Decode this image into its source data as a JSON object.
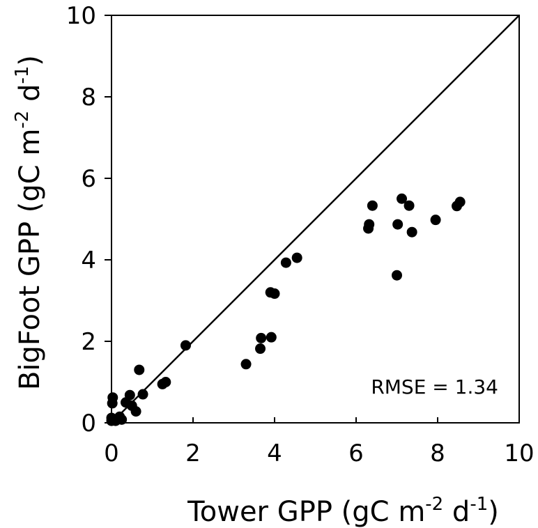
{
  "chart_data": {
    "type": "scatter",
    "xlabel": {
      "base": "Tower GPP (gC m",
      "sup1": "-2",
      "mid": " d",
      "sup2": "-1",
      "end": ")"
    },
    "ylabel": {
      "base": "BigFoot GPP (gC m",
      "sup1": "-2",
      "mid": " d",
      "sup2": "-1",
      "end": ")"
    },
    "xlim": [
      0,
      10
    ],
    "ylim": [
      0,
      10
    ],
    "xticks": [
      "0",
      "2",
      "4",
      "6",
      "8",
      "10"
    ],
    "yticks": [
      "0",
      "2",
      "4",
      "6",
      "8",
      "10"
    ],
    "grid": false,
    "reference_line": {
      "type": "1:1",
      "from": [
        0,
        0
      ],
      "to": [
        10,
        10
      ]
    },
    "annotation": "RMSE = 1.34",
    "points": [
      {
        "x": 0.0,
        "y": 0.05
      },
      {
        "x": 0.0,
        "y": 0.12
      },
      {
        "x": 0.05,
        "y": 0.08
      },
      {
        "x": 0.1,
        "y": 0.05
      },
      {
        "x": 0.25,
        "y": 0.08
      },
      {
        "x": 0.2,
        "y": 0.15
      },
      {
        "x": 0.02,
        "y": 0.48
      },
      {
        "x": 0.03,
        "y": 0.62
      },
      {
        "x": 0.35,
        "y": 0.5
      },
      {
        "x": 0.45,
        "y": 0.68
      },
      {
        "x": 0.5,
        "y": 0.42
      },
      {
        "x": 0.6,
        "y": 0.28
      },
      {
        "x": 0.68,
        "y": 1.3
      },
      {
        "x": 0.77,
        "y": 0.7
      },
      {
        "x": 1.25,
        "y": 0.95
      },
      {
        "x": 1.33,
        "y": 1.0
      },
      {
        "x": 1.82,
        "y": 1.9
      },
      {
        "x": 3.3,
        "y": 1.44
      },
      {
        "x": 3.65,
        "y": 1.82
      },
      {
        "x": 3.67,
        "y": 2.08
      },
      {
        "x": 3.92,
        "y": 2.1
      },
      {
        "x": 3.9,
        "y": 3.2
      },
      {
        "x": 4.0,
        "y": 3.17
      },
      {
        "x": 4.28,
        "y": 3.93
      },
      {
        "x": 4.55,
        "y": 4.05
      },
      {
        "x": 6.3,
        "y": 4.77
      },
      {
        "x": 6.32,
        "y": 4.87
      },
      {
        "x": 6.4,
        "y": 5.33
      },
      {
        "x": 7.0,
        "y": 3.62
      },
      {
        "x": 7.02,
        "y": 4.87
      },
      {
        "x": 7.12,
        "y": 5.5
      },
      {
        "x": 7.3,
        "y": 5.33
      },
      {
        "x": 7.37,
        "y": 4.68
      },
      {
        "x": 7.95,
        "y": 4.98
      },
      {
        "x": 8.47,
        "y": 5.32
      },
      {
        "x": 8.55,
        "y": 5.42
      }
    ]
  }
}
